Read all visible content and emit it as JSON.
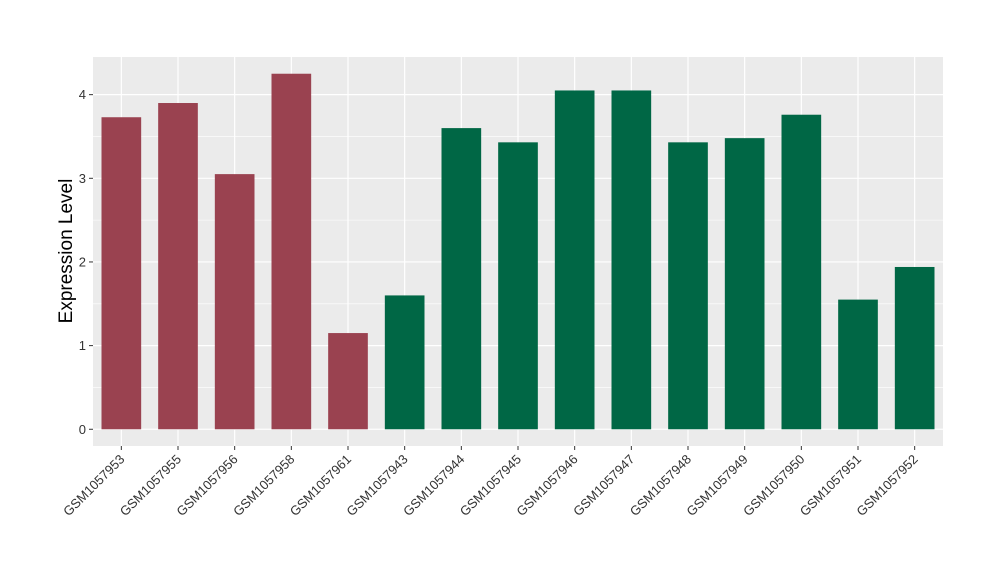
{
  "chart_data": {
    "type": "bar",
    "title": "",
    "xlabel": "",
    "ylabel": "Expression Level",
    "ylim": [
      -0.2,
      4.45
    ],
    "yticks": [
      0,
      1,
      2,
      3,
      4
    ],
    "grid": true,
    "categories": [
      "GSM1057953",
      "GSM1057955",
      "GSM1057956",
      "GSM1057958",
      "GSM1057961",
      "GSM1057943",
      "GSM1057944",
      "GSM1057945",
      "GSM1057946",
      "GSM1057947",
      "GSM1057948",
      "GSM1057949",
      "GSM1057950",
      "GSM1057951",
      "GSM1057952"
    ],
    "values": [
      3.73,
      3.9,
      3.05,
      4.25,
      1.15,
      1.6,
      3.6,
      3.43,
      4.05,
      4.05,
      3.43,
      3.48,
      3.76,
      1.55,
      1.94
    ],
    "groups": [
      0,
      0,
      0,
      0,
      0,
      1,
      1,
      1,
      1,
      1,
      1,
      1,
      1,
      1,
      1
    ],
    "group_colors": [
      "#9A4250",
      "#006745"
    ],
    "panel_color": "#EBEBEB",
    "grid_color": "#FFFFFF"
  }
}
